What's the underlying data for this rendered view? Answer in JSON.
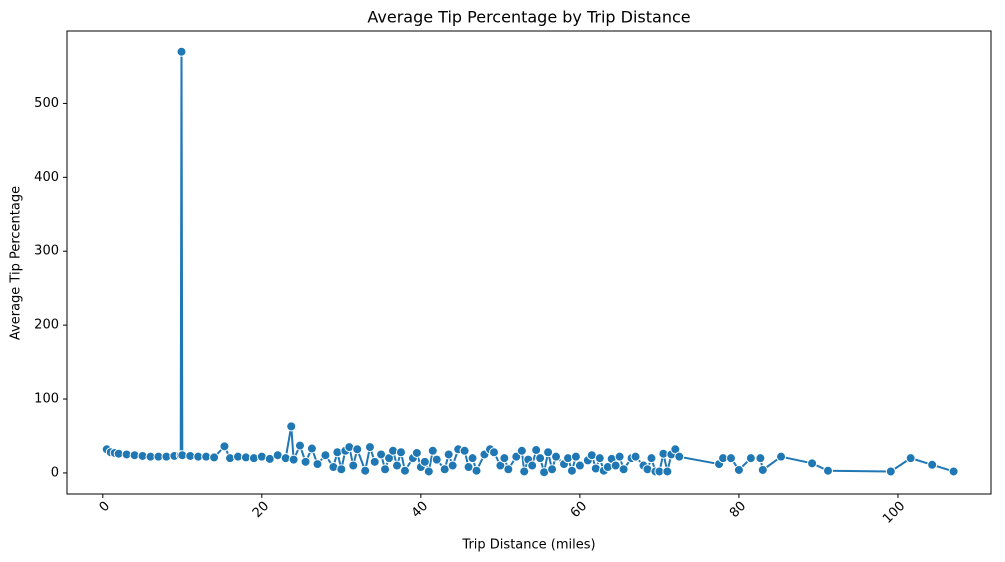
{
  "chart_data": {
    "type": "line",
    "title": "Average Tip Percentage by Trip Distance",
    "xlabel": "Trip Distance (miles)",
    "ylabel": "Average Tip Percentage",
    "x": [
      0.5,
      1,
      1.5,
      2,
      3,
      4,
      5,
      6,
      7,
      8,
      9,
      9.8,
      9.9,
      10,
      11,
      12,
      13,
      14,
      15.3,
      16,
      17,
      18,
      19,
      20,
      21,
      22,
      23,
      23.7,
      24,
      24.8,
      25.5,
      26.3,
      27,
      28,
      29,
      29.5,
      30,
      30.5,
      31,
      31.5,
      32,
      33,
      33.6,
      34.2,
      35,
      35.5,
      36,
      36.5,
      37,
      37.5,
      38,
      39,
      39.5,
      40,
      40.5,
      41,
      41.5,
      42,
      43,
      43.5,
      44,
      44.7,
      45.5,
      46,
      46.5,
      47,
      48,
      48.7,
      49.2,
      50,
      50.5,
      51,
      52,
      52.7,
      53,
      53.5,
      54,
      54.5,
      55,
      55.5,
      56,
      56.5,
      57,
      58,
      58.5,
      59,
      59.5,
      60,
      61,
      61.5,
      62,
      62.5,
      63,
      63.5,
      64,
      64.5,
      65,
      65.5,
      66.5,
      67,
      68,
      68.5,
      69,
      69.5,
      70,
      70.5,
      71,
      71.5,
      72,
      72.5,
      77.5,
      78,
      79,
      80,
      81.5,
      82.7,
      83,
      85.3,
      89.2,
      91.2,
      99.1,
      101.6,
      104.3,
      107
    ],
    "series": [
      {
        "name": "Average Tip Percentage",
        "color": "#1f77b4",
        "values": [
          32,
          28,
          27,
          26,
          25,
          24,
          23,
          22,
          22,
          22,
          23,
          24,
          570,
          24,
          23,
          22,
          22,
          21,
          36,
          20,
          22,
          21,
          20,
          22,
          19,
          24,
          20,
          63,
          18,
          37,
          15,
          33,
          12,
          24,
          8,
          28,
          5,
          30,
          35,
          10,
          32,
          3,
          35,
          15,
          25,
          5,
          20,
          30,
          10,
          28,
          3,
          20,
          27,
          8,
          15,
          2,
          30,
          18,
          5,
          25,
          10,
          32,
          30,
          8,
          20,
          3,
          25,
          32,
          28,
          10,
          20,
          5,
          22,
          30,
          2,
          18,
          10,
          31,
          20,
          1,
          28,
          5,
          22,
          12,
          20,
          3,
          22,
          10,
          17,
          24,
          6,
          20,
          3,
          8,
          19,
          10,
          22,
          5,
          20,
          22,
          10,
          5,
          20,
          2,
          2,
          26,
          2,
          25,
          32,
          22,
          12,
          20,
          20,
          4,
          20,
          20,
          4,
          22,
          13,
          3,
          2,
          20,
          11,
          2
        ]
      }
    ],
    "xlim": [
      -4.5,
      111.7
    ],
    "ylim": [
      -28.5,
      598
    ],
    "xticks": [
      0,
      20,
      40,
      60,
      80,
      100
    ],
    "yticks": [
      0,
      100,
      200,
      300,
      400,
      500
    ]
  }
}
